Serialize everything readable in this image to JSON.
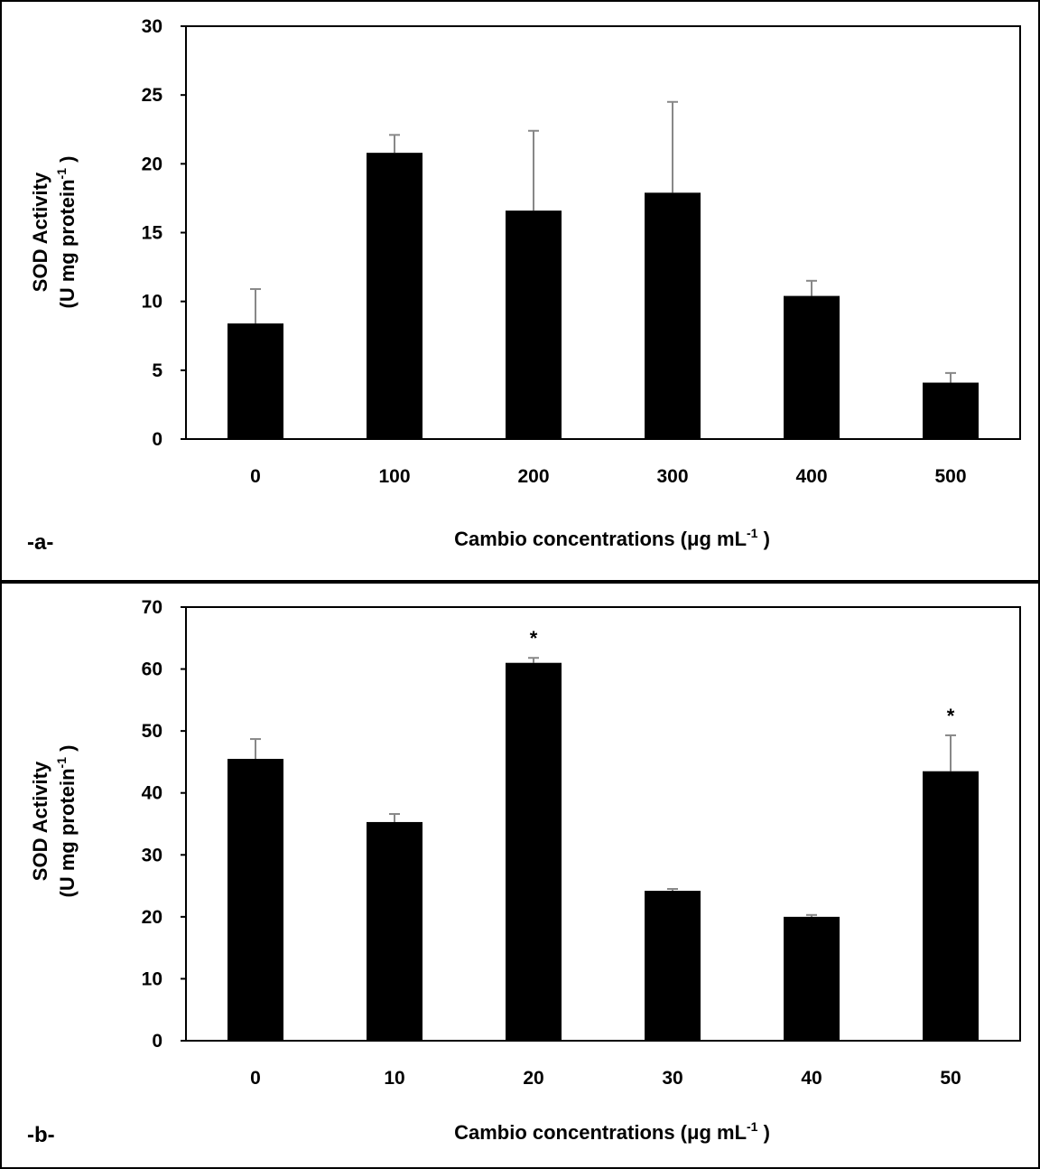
{
  "chart_data": [
    {
      "type": "bar",
      "panel_label": "-a-",
      "categories": [
        "0",
        "100",
        "200",
        "300",
        "400",
        "500"
      ],
      "values": [
        8.4,
        20.8,
        16.6,
        17.9,
        10.4,
        4.1
      ],
      "errors": [
        2.5,
        1.3,
        5.8,
        6.6,
        1.1,
        0.7
      ],
      "significance": [
        "",
        "",
        "",
        "",
        "",
        ""
      ],
      "xlabel": "Cambio concentrations (μg mL",
      "xlabel_sup": "-1",
      "xlabel_close": " )",
      "ylabel_line1": "SOD Activity",
      "ylabel_line2": "(U mg protein",
      "ylabel_sup": "-1",
      "ylabel_close": " )",
      "ylim": [
        0,
        30
      ],
      "yticks": [
        "0",
        "5",
        "10",
        "15",
        "20",
        "25",
        "30"
      ],
      "bar_color": "#000000",
      "error_color": "#888888",
      "grid": false
    },
    {
      "type": "bar",
      "panel_label": "-b-",
      "categories": [
        "0",
        "10",
        "20",
        "30",
        "40",
        "50"
      ],
      "values": [
        45.5,
        35.3,
        61.0,
        24.2,
        20.0,
        43.5
      ],
      "errors": [
        3.2,
        1.3,
        0.8,
        0.3,
        0.3,
        5.8
      ],
      "significance": [
        "",
        "",
        "*",
        "",
        "",
        "*"
      ],
      "xlabel": "Cambio concentrations (μg mL",
      "xlabel_sup": "-1",
      "xlabel_close": " )",
      "ylabel_line1": "SOD Activity",
      "ylabel_line2": "(U mg protein",
      "ylabel_sup": "-1",
      "ylabel_close": " )",
      "ylim": [
        0,
        70
      ],
      "yticks": [
        "0",
        "10",
        "20",
        "30",
        "40",
        "50",
        "60",
        "70"
      ],
      "bar_color": "#000000",
      "error_color": "#888888",
      "grid": false
    }
  ]
}
